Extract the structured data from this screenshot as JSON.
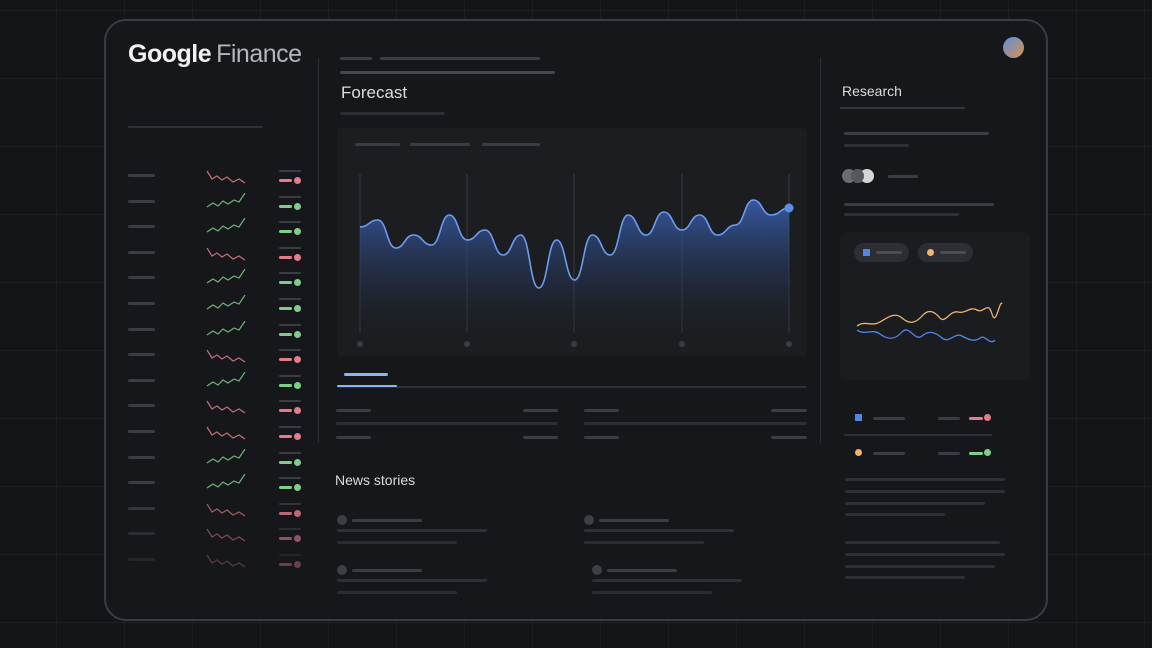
{
  "app": {
    "logo_google": "Google",
    "logo_finance": "Finance"
  },
  "main": {
    "forecast_title": "Forecast",
    "news_title": "News stories",
    "forecast_chart": {
      "type": "area",
      "color": "#5b8fe6",
      "values": [
        73,
        80,
        52,
        65,
        55,
        85,
        60,
        70,
        45,
        65,
        12,
        60,
        20,
        65,
        45,
        85,
        65,
        88,
        70,
        85,
        65,
        75,
        100,
        85,
        92
      ]
    }
  },
  "sidebar": {
    "rows": [
      {
        "trend": "down",
        "color": "#e27d8c"
      },
      {
        "trend": "up",
        "color": "#7fce8b"
      },
      {
        "trend": "up",
        "color": "#7fce8b"
      },
      {
        "trend": "down",
        "color": "#e27d8c"
      },
      {
        "trend": "up",
        "color": "#7fce8b"
      },
      {
        "trend": "up",
        "color": "#7fce8b"
      },
      {
        "trend": "up",
        "color": "#7fce8b"
      },
      {
        "trend": "down",
        "color": "#e27d8c"
      },
      {
        "trend": "up",
        "color": "#7fce8b"
      },
      {
        "trend": "down",
        "color": "#e27d8c"
      },
      {
        "trend": "down",
        "color": "#e27d8c"
      },
      {
        "trend": "up",
        "color": "#7fce8b"
      },
      {
        "trend": "up",
        "color": "#7fce8b"
      },
      {
        "trend": "down",
        "color": "#e27d8c"
      },
      {
        "trend": "down",
        "color": "#e27d8c"
      },
      {
        "trend": "down",
        "color": "#e27d8c"
      }
    ]
  },
  "research": {
    "title": "Research",
    "legend_colors": [
      "#4f86e8",
      "#f0b46a"
    ],
    "positive": "#7fce8b",
    "negative": "#e27d8c"
  }
}
